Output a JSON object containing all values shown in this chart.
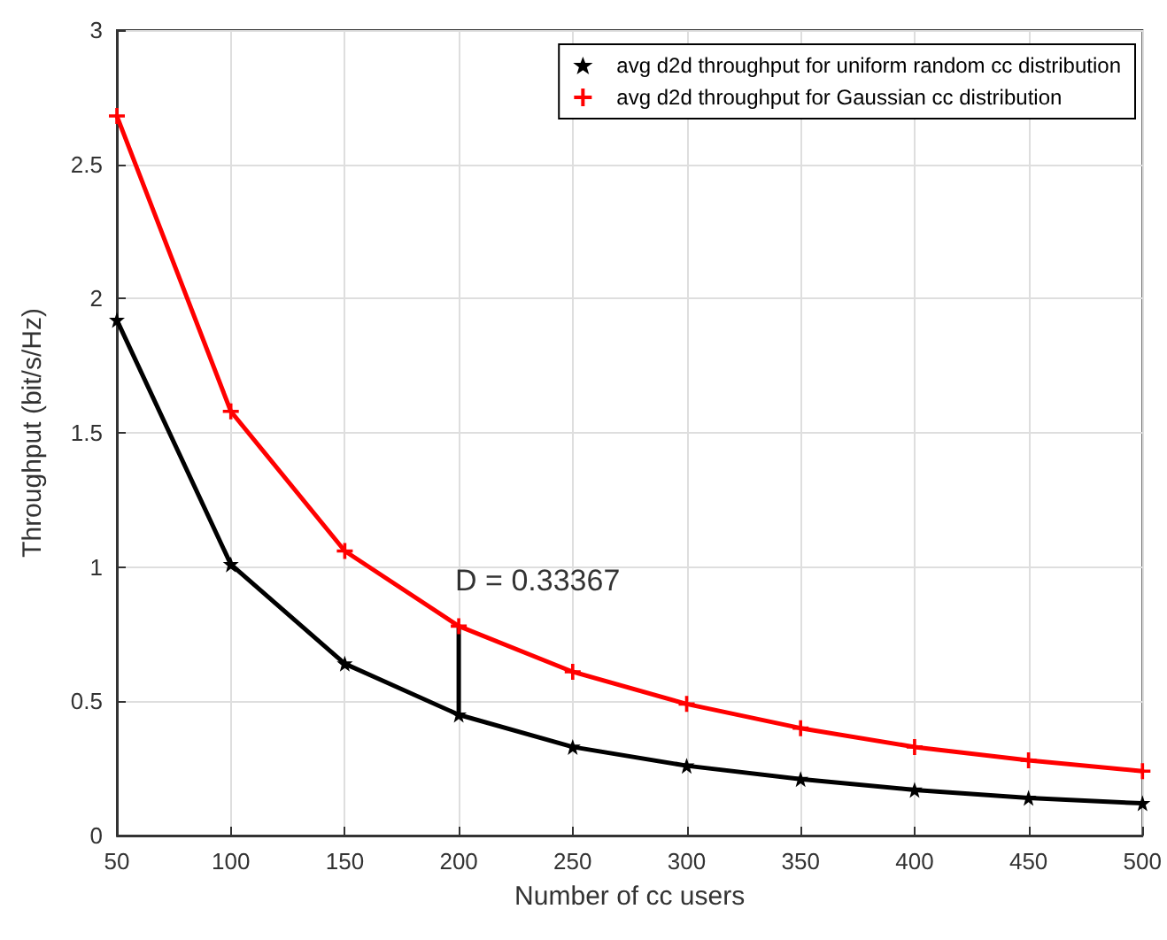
{
  "chart_data": {
    "type": "line",
    "xlabel": "Number of cc users",
    "ylabel": "Throughput (bit/s/Hz)",
    "x": [
      50,
      100,
      150,
      200,
      250,
      300,
      350,
      400,
      450,
      500
    ],
    "series": [
      {
        "name": "avg d2d throughput for uniform random cc distribution",
        "color": "#000000",
        "marker": "star",
        "values": [
          1.92,
          1.01,
          0.64,
          0.45,
          0.33,
          0.26,
          0.21,
          0.17,
          0.14,
          0.12
        ]
      },
      {
        "name": "avg d2d throughput for Gaussian cc distribution",
        "color": "#ff0000",
        "marker": "cross",
        "values": [
          2.68,
          1.58,
          1.06,
          0.78,
          0.61,
          0.49,
          0.4,
          0.33,
          0.28,
          0.24
        ]
      },
      {
        "type": "line",
        "color": "#000000",
        "marker": "none",
        "x": [
          200,
          200
        ],
        "values": [
          0.45,
          0.78
        ]
      }
    ],
    "annotations": [
      {
        "text": "D = 0.33367",
        "x": 200,
        "y": 0.78
      }
    ],
    "xlim": [
      50,
      500
    ],
    "xticks": [
      50,
      100,
      150,
      200,
      250,
      300,
      350,
      400,
      450,
      500
    ],
    "ylim": [
      0,
      3
    ],
    "yticks": [
      0,
      0.5,
      1,
      1.5,
      2,
      2.5,
      3
    ],
    "grid": true,
    "legend": "top right",
    "line_style": "solid"
  }
}
